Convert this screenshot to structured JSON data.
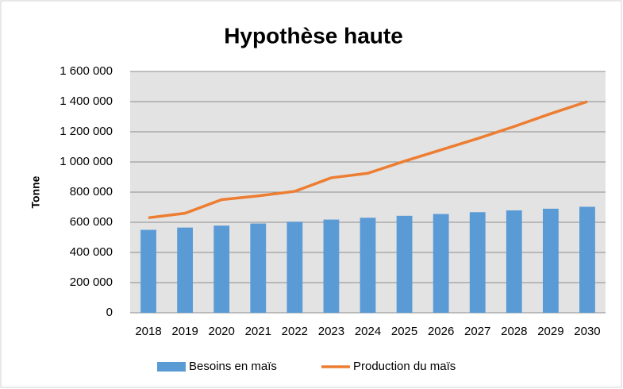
{
  "chart_data": {
    "type": "bar",
    "title": "Hypothèse haute",
    "y_label": "Tonne",
    "categories": [
      "2018",
      "2019",
      "2020",
      "2021",
      "2022",
      "2023",
      "2024",
      "2025",
      "2026",
      "2027",
      "2028",
      "2029",
      "2030"
    ],
    "series": [
      {
        "name": "Besoins en maïs",
        "type": "bar",
        "color": "#5b9bd5",
        "values": [
          550000,
          565000,
          578000,
          592000,
          604000,
          618000,
          630000,
          643000,
          655000,
          667000,
          679000,
          690000,
          703000
        ]
      },
      {
        "name": "Production du maïs",
        "type": "line",
        "color": "#ed7d31",
        "values": [
          630000,
          660000,
          750000,
          775000,
          805000,
          895000,
          925000,
          1005000,
          1080000,
          1155000,
          1235000,
          1320000,
          1400000
        ]
      }
    ],
    "ylim": [
      0,
      1600000
    ],
    "yticks": [
      0,
      {
        "value": 200000,
        "label": "200 000"
      },
      {
        "value": 400000,
        "label": "400 000"
      },
      {
        "value": 600000,
        "label": "600 000"
      },
      {
        "value": 800000,
        "label": "800 000"
      },
      {
        "value": 1000000,
        "label": "1 000 000"
      },
      {
        "value": 1200000,
        "label": "1 200 000"
      },
      {
        "value": 1400000,
        "label": "1 400 000"
      },
      {
        "value": 1600000,
        "label": "1 600 000"
      }
    ],
    "grid": true,
    "legend": "bottom"
  }
}
